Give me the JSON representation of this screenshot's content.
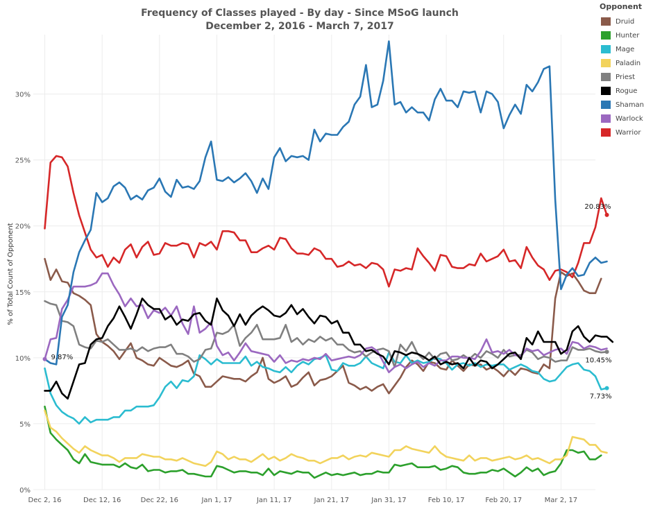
{
  "chart_data": {
    "type": "line",
    "title": "Frequency of Classes played - By day - Since MSoG launch",
    "subtitle": "December 2, 2016 - March 7, 2017",
    "xlabel": "",
    "ylabel": "% of Total Count of Opponent",
    "x_start": "2016-12-02",
    "x_end": "2017-03-07",
    "xlim": [
      "2016-11-30",
      "2017-03-08"
    ],
    "x_ticks": [
      {
        "label": "Dec 2, 16",
        "date": "2016-12-02"
      },
      {
        "label": "Dec 12, 16",
        "date": "2016-12-12"
      },
      {
        "label": "Dec 22, 16",
        "date": "2016-12-22"
      },
      {
        "label": "Jan 1, 17",
        "date": "2017-01-01"
      },
      {
        "label": "Jan 11, 17",
        "date": "2017-01-11"
      },
      {
        "label": "Jan 21, 17",
        "date": "2017-01-21"
      },
      {
        "label": "Jan 31, 17",
        "date": "2017-01-31"
      },
      {
        "label": "Feb 10, 17",
        "date": "2017-02-10"
      },
      {
        "label": "Feb 20, 17",
        "date": "2017-02-20"
      },
      {
        "label": "Mar 2, 17",
        "date": "2017-03-02"
      }
    ],
    "y_ticks": [
      {
        "label": "0%",
        "value": 0
      },
      {
        "label": "5%",
        "value": 5
      },
      {
        "label": "10%",
        "value": 10
      },
      {
        "label": "15%",
        "value": 15
      },
      {
        "label": "20%",
        "value": 20
      },
      {
        "label": "25%",
        "value": 25
      },
      {
        "label": "30%",
        "value": 30
      }
    ],
    "ylim": [
      0,
      34.5
    ],
    "grid": true,
    "legend": {
      "title": "Opponent",
      "position": "right"
    },
    "series": [
      {
        "name": "Druid",
        "color": "#8a5a4a",
        "values": [
          17.5,
          15.9,
          16.7,
          15.8,
          15.7,
          14.9,
          14.7,
          14.4,
          14,
          11.8,
          11.2,
          10.9,
          10.5,
          9.9,
          10.5,
          11.1,
          10,
          9.8,
          9.5,
          9.4,
          10,
          9.7,
          9.4,
          9.3,
          9.5,
          9.8,
          8.8,
          8.6,
          7.8,
          7.8,
          8.2,
          8.6,
          8.5,
          8.4,
          8.4,
          8.2,
          8.6,
          8.9,
          10,
          8.4,
          8.1,
          8.3,
          8.6,
          7.8,
          8,
          8.5,
          8.9,
          7.9,
          8.3,
          8.4,
          8.6,
          9,
          9.4,
          8.1,
          7.9,
          7.6,
          7.8,
          7.5,
          7.8,
          8,
          7.3,
          7.9,
          8.5,
          9.3,
          9.8,
          9.5,
          9,
          9.7,
          9.6,
          9.2,
          9.1,
          9.8,
          9.4,
          9,
          9.5,
          9.4,
          9.5,
          9.1,
          9.3,
          9,
          8.6,
          9.1,
          8.7,
          9.2,
          9.1,
          8.9,
          8.8,
          9.5,
          9.2,
          14.5,
          16.5,
          16.2,
          16.4,
          15.8,
          15.1,
          14.9,
          14.9,
          16
        ]
      },
      {
        "name": "Hunter",
        "color": "#2ca02c",
        "values": [
          6.3,
          4.3,
          3.8,
          3.4,
          3,
          2.3,
          2,
          2.7,
          2.1,
          2,
          1.9,
          1.9,
          1.9,
          1.7,
          2,
          1.7,
          1.6,
          1.9,
          1.4,
          1.5,
          1.5,
          1.3,
          1.4,
          1.4,
          1.5,
          1.2,
          1.2,
          1.1,
          1,
          1,
          1.8,
          1.7,
          1.5,
          1.3,
          1.4,
          1.4,
          1.3,
          1.3,
          1.1,
          1.6,
          1.1,
          1.4,
          1.3,
          1.2,
          1.4,
          1.3,
          1.3,
          0.9,
          1.1,
          1.3,
          1.1,
          1.2,
          1.1,
          1.2,
          1.3,
          1.1,
          1.2,
          1.2,
          1.4,
          1.3,
          1.3,
          1.9,
          1.8,
          1.9,
          2,
          1.7,
          1.7,
          1.7,
          1.8,
          1.5,
          1.6,
          1.8,
          1.7,
          1.3,
          1.2,
          1.2,
          1.3,
          1.3,
          1.5,
          1.4,
          1.6,
          1.3,
          1,
          1.3,
          1.7,
          1.4,
          1.6,
          1.1,
          1.3,
          1.4,
          2,
          3,
          3,
          2.8,
          2.9,
          2.3,
          2.3,
          2.6
        ]
      },
      {
        "name": "Mage",
        "color": "#2bbcd0",
        "values": [
          9.2,
          7.3,
          6.4,
          5.9,
          5.6,
          5.4,
          5,
          5.5,
          5.1,
          5.3,
          5.3,
          5.3,
          5.5,
          5.5,
          6,
          6,
          6.3,
          6.3,
          6.3,
          6.4,
          7,
          7.8,
          8.2,
          7.7,
          8.3,
          8.2,
          8.6,
          10.2,
          9.9,
          9.5,
          9.9,
          9.6,
          9.6,
          9.6,
          9.6,
          10.1,
          9.4,
          9.7,
          9.3,
          9.2,
          9,
          8.9,
          9.3,
          8.9,
          9.4,
          9.7,
          9.5,
          9.9,
          10,
          10.2,
          9.1,
          9,
          9.6,
          9.4,
          9.4,
          9.6,
          10.1,
          9.6,
          9.4,
          9.2,
          10.4,
          9.7,
          9.6,
          10.2,
          9.6,
          9.8,
          9.6,
          9.7,
          10,
          9.9,
          9.6,
          9.1,
          9.5,
          9.6,
          9.4,
          9.6,
          9.3,
          9.5,
          9.4,
          9.5,
          9.5,
          9.1,
          9.3,
          9.5,
          9.3,
          9,
          8.9,
          8.4,
          8.2,
          8.3,
          8.8,
          9.3,
          9.5,
          9.6,
          9.1,
          9,
          8.6,
          7.6,
          7.7
        ]
      },
      {
        "name": "Paladin",
        "color": "#f2d35c",
        "values": [
          6,
          4.7,
          4.4,
          3.9,
          3.5,
          3.1,
          2.8,
          3.3,
          3,
          2.8,
          2.6,
          2.6,
          2.4,
          2.1,
          2.4,
          2.4,
          2.4,
          2.7,
          2.6,
          2.5,
          2.5,
          2.3,
          2.3,
          2.2,
          2.4,
          2.2,
          2,
          1.9,
          1.8,
          2.1,
          2.9,
          2.7,
          2.3,
          2.5,
          2.3,
          2.3,
          2.1,
          2.4,
          2.7,
          2.3,
          2.5,
          2.2,
          2.4,
          2.7,
          2.5,
          2.4,
          2.2,
          2.2,
          2,
          2.2,
          2.4,
          2.4,
          2.6,
          2.3,
          2.5,
          2.6,
          2.5,
          2.8,
          2.7,
          2.6,
          2.5,
          3,
          3,
          3.3,
          3.1,
          3,
          2.9,
          2.8,
          3.3,
          2.8,
          2.5,
          2.4,
          2.3,
          2.2,
          2.6,
          2.2,
          2.4,
          2.4,
          2.2,
          2.3,
          2.4,
          2.5,
          2.3,
          2.4,
          2.6,
          2.3,
          2.4,
          2.2,
          2,
          2.3,
          2.3,
          2.6,
          4,
          3.9,
          3.8,
          3.4,
          3.4,
          2.9,
          2.8
        ]
      },
      {
        "name": "Priest",
        "color": "#808080",
        "values": [
          14.3,
          14.1,
          14,
          12.8,
          12.7,
          12.4,
          11,
          10.8,
          10.7,
          11.3,
          11.2,
          11.4,
          11,
          10.6,
          10.6,
          10.7,
          10.5,
          10.8,
          10.5,
          10.7,
          10.8,
          10.8,
          11,
          10.3,
          10.3,
          10.1,
          9.7,
          9.9,
          10.6,
          10.7,
          11.9,
          11.8,
          12,
          12.5,
          10.9,
          11.5,
          11.9,
          12.5,
          11.4,
          11.4,
          11.4,
          11.5,
          12.5,
          11.2,
          11.5,
          11,
          11.4,
          11.2,
          11.6,
          11.3,
          11.5,
          11,
          11,
          10.6,
          10.4,
          10.5,
          10.1,
          10.4,
          10.6,
          10.7,
          10.5,
          9.3,
          11,
          10.5,
          11.2,
          10.3,
          9.9,
          10.4,
          9.9,
          10.3,
          10.4,
          9.8,
          9.9,
          10.2,
          9.9,
          10.3,
          10,
          10.5,
          10.3,
          10,
          10.6,
          10.1,
          10.2,
          10.2,
          10.6,
          10.4,
          9.9,
          10.1,
          10,
          9.7,
          9.8,
          9.8,
          10.8,
          10.6,
          10.6,
          10.7,
          10.5,
          10.4,
          10.45
        ]
      },
      {
        "name": "Rogue",
        "color": "#000000",
        "values": [
          7.5,
          7.5,
          8.2,
          7.3,
          6.9,
          8.2,
          9.5,
          9.6,
          11,
          11.4,
          11.5,
          12.4,
          13,
          13.9,
          13.1,
          12.2,
          13.3,
          14.5,
          14,
          13.7,
          13.7,
          12.9,
          13.2,
          12.5,
          12.9,
          12.8,
          13.3,
          13.4,
          12.8,
          12.5,
          14.5,
          13.6,
          13.2,
          12.4,
          13.3,
          12.5,
          13.2,
          13.6,
          13.9,
          13.6,
          13.2,
          13.1,
          13.4,
          14,
          13.3,
          13.7,
          13.1,
          12.6,
          13.2,
          13.1,
          12.6,
          12.8,
          11.9,
          11.9,
          11,
          11,
          10.5,
          10.6,
          10.3,
          10.1,
          9.5,
          10.5,
          10.4,
          10.2,
          10.4,
          10.3,
          10.1,
          9.8,
          10.1,
          9.5,
          9.7,
          9.5,
          9.6,
          9.2,
          10,
          9.4,
          9.8,
          9.7,
          9.2,
          9.5,
          9.9,
          10.3,
          10.4,
          9.9,
          11.5,
          11,
          12,
          11.2,
          11.2,
          11.2,
          10.3,
          10.6,
          12,
          12.4,
          11.6,
          11.2,
          11.7,
          11.6,
          11.6,
          11.2
        ]
      },
      {
        "name": "Shaman",
        "color": "#2a77b4",
        "values": [
          9.9,
          9.6,
          9.5,
          13.1,
          14,
          16.5,
          18,
          18.9,
          19.7,
          22.5,
          21.8,
          22.1,
          23,
          23.3,
          22.9,
          22,
          22.3,
          22,
          22.7,
          22.9,
          23.6,
          22.6,
          22.2,
          23.5,
          22.9,
          23,
          22.8,
          23.4,
          25.2,
          26.4,
          23.5,
          23.4,
          23.7,
          23.3,
          23.6,
          24,
          23.4,
          22.5,
          23.6,
          22.8,
          25.2,
          25.9,
          24.9,
          25.3,
          25.2,
          25.3,
          25,
          27.3,
          26.4,
          27,
          26.9,
          26.9,
          27.5,
          27.9,
          29.2,
          29.8,
          32.2,
          29,
          29.2,
          31,
          34,
          29.2,
          29.4,
          28.6,
          29,
          28.6,
          28.6,
          28,
          29.6,
          30.4,
          29.5,
          29.5,
          29,
          30.2,
          30.1,
          30.2,
          28.6,
          30.2,
          30,
          29.4,
          27.4,
          28.4,
          29.2,
          28.5,
          30.7,
          30.2,
          30.9,
          31.9,
          32.1,
          22,
          15.2,
          16.3,
          16.8,
          16.2,
          16.3,
          17.2,
          17.6,
          17.2,
          17.3
        ]
      },
      {
        "name": "Warlock",
        "color": "#9b68c0",
        "values": [
          9.9,
          11.4,
          11.5,
          13.7,
          14.4,
          15.4,
          15.4,
          15.4,
          15.5,
          15.7,
          16.4,
          16.4,
          15.5,
          14.8,
          13.9,
          14.5,
          13.9,
          14,
          13,
          13.6,
          13.4,
          13.8,
          13.2,
          13.9,
          12.6,
          11.8,
          13.9,
          11.9,
          12.2,
          12.7,
          10.9,
          10.2,
          10.4,
          9.8,
          10.4,
          11.1,
          10.5,
          10.4,
          10.3,
          10.2,
          9.7,
          10.2,
          9.6,
          9.8,
          9.7,
          9.9,
          9.8,
          10,
          9.9,
          10.3,
          9.8,
          9.9,
          10,
          10.1,
          10,
          10.2,
          10.7,
          10.8,
          10.5,
          9.7,
          8.9,
          9.3,
          9.5,
          9.2,
          9.5,
          9.7,
          9.3,
          9.6,
          9.4,
          9.8,
          9.8,
          10.1,
          10.1,
          10,
          10,
          9.9,
          10.5,
          11.4,
          10.4,
          10.5,
          10.3,
          10.6,
          10.2,
          10.1,
          10.7,
          10.5,
          10.6,
          10.2,
          10.4,
          10.6,
          10.7,
          10.3,
          11.2,
          11.1,
          10.7,
          10.9,
          10.8,
          10.6,
          10.7
        ]
      },
      {
        "name": "Warrior",
        "color": "#d62728",
        "values": [
          19.8,
          24.8,
          25.3,
          25.2,
          24.5,
          22.5,
          20.8,
          19.5,
          18.2,
          17.6,
          17.8,
          16.9,
          17.6,
          17.2,
          18.2,
          18.6,
          17.6,
          18.4,
          18.8,
          17.8,
          17.9,
          18.7,
          18.5,
          18.5,
          18.7,
          18.6,
          17.6,
          18.7,
          18.5,
          18.8,
          18.2,
          19.6,
          19.6,
          19.5,
          18.9,
          18.9,
          18,
          18,
          18.3,
          18.5,
          18.2,
          19.1,
          19,
          18.3,
          17.9,
          17.9,
          17.8,
          18.3,
          18.1,
          17.5,
          17.5,
          16.9,
          17,
          17.3,
          17,
          17.1,
          16.8,
          17.2,
          17.1,
          16.7,
          15.4,
          16.7,
          16.6,
          16.8,
          16.7,
          18.3,
          17.7,
          17.2,
          16.6,
          17.8,
          17.7,
          16.9,
          16.8,
          16.8,
          17.1,
          17,
          17.9,
          17.3,
          17.5,
          17.7,
          18.2,
          17.3,
          17.4,
          16.8,
          18.4,
          17.6,
          17,
          16.7,
          15.9,
          16.6,
          16.7,
          16.5,
          16.1,
          17.2,
          18.7,
          18.7,
          19.9,
          22.1,
          20.83
        ]
      }
    ],
    "annotations": [
      {
        "text": "9.87%",
        "series": "Warlock",
        "point": "first"
      },
      {
        "text": "20.83%",
        "series": "Warrior",
        "point": "last"
      },
      {
        "text": "10.45%",
        "series": "Priest",
        "point": "last"
      },
      {
        "text": "7.73%",
        "series": "Mage",
        "point": "last"
      }
    ]
  }
}
